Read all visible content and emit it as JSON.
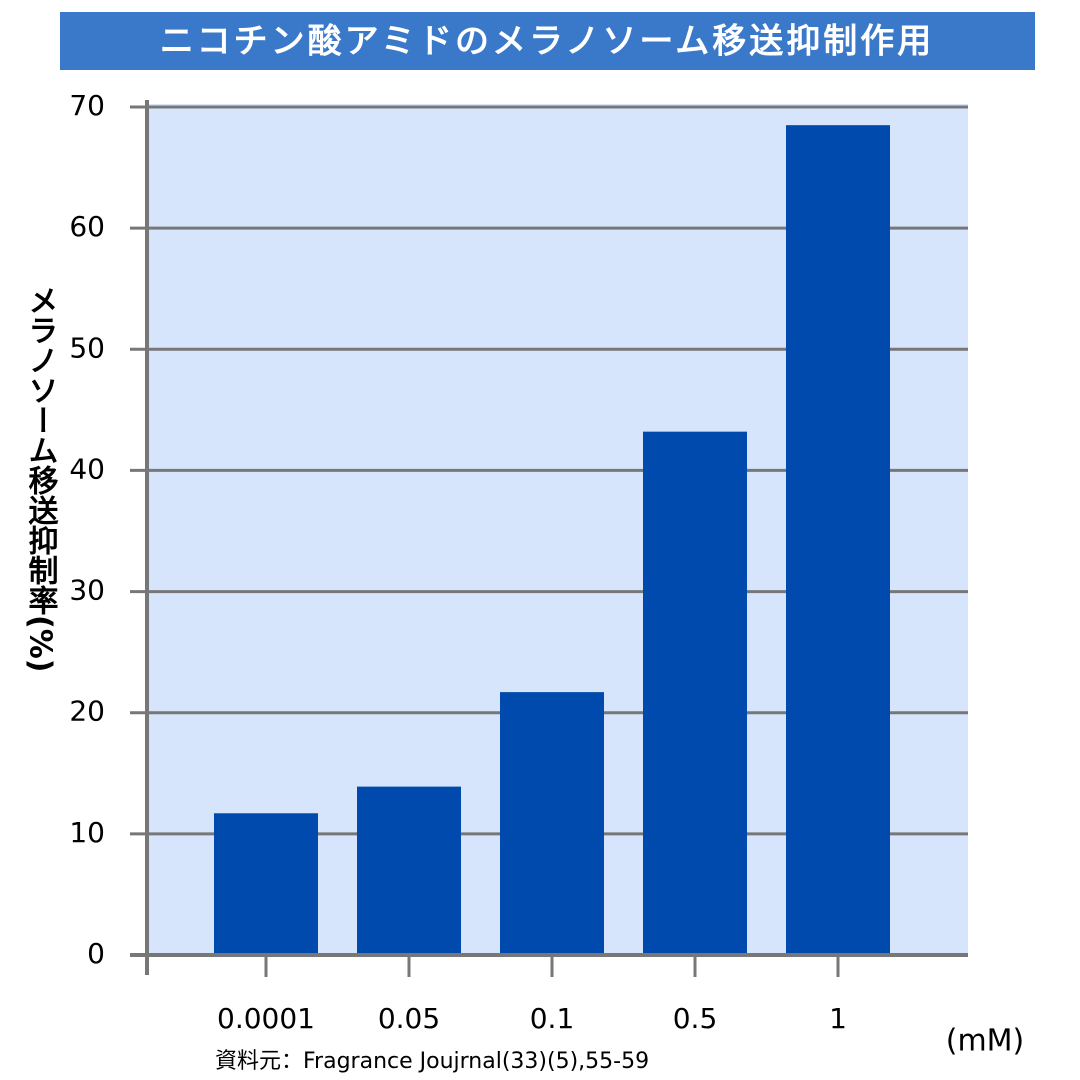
{
  "chart_data": {
    "type": "bar",
    "title": "ニコチン酸アミドのメラノソーム移送抑制作用",
    "y_label": "メラノソーム移送抑制率(%)",
    "x_unit": "(mM)",
    "source": "資料元：Fragrance Joujrnal(33)(5),55-59",
    "categories": [
      "0.0001",
      "0.05",
      "0.1",
      "0.5",
      "1"
    ],
    "values": [
      11.7,
      13.9,
      21.7,
      43.2,
      68.5
    ],
    "color": "#004aad",
    "ylim": [
      0,
      70
    ],
    "yticks": [
      0,
      10,
      20,
      30,
      40,
      50,
      60,
      70
    ],
    "grid": true
  }
}
